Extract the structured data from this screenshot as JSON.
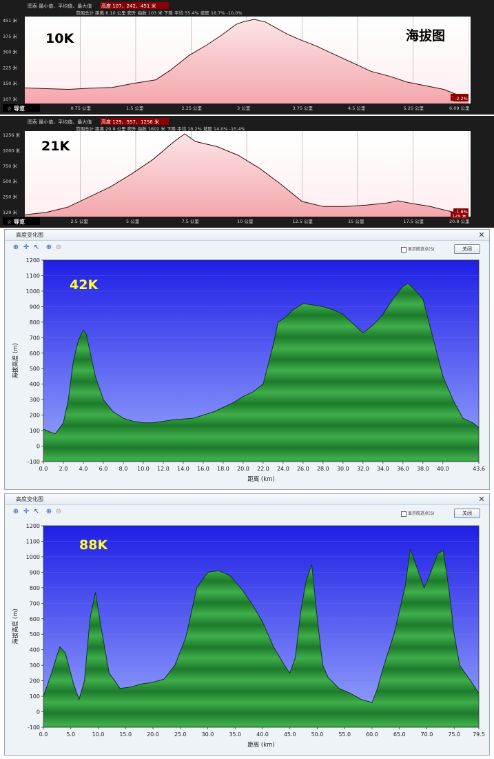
{
  "panel1": {
    "header_line1": "图表  最小值、平均值、最大值",
    "header_highlight": "高度  107、242、451  米",
    "header_line2": "范围总计  距离  6.10  公里  爬升  指数  103  米  下降  平均  55.4%  坡度  16.7%  -10.0%",
    "label": "10K",
    "corner_title": "海拔图",
    "y_ticks": [
      "451 米",
      "375 米",
      "300 米",
      "225 米",
      "150 米",
      "107 米"
    ],
    "x_ticks": [
      "0.75 公里",
      "1.5 公里",
      "2.25 公里",
      "3 公里",
      "3.75 公里",
      "4.5 公里",
      "5.25 公里",
      "6.09 公里"
    ],
    "right_value": "127 米",
    "right_pct": "-2.2%",
    "nav_label": "导览"
  },
  "panel2": {
    "header_line1": "图表  最小值、平均值、最大值",
    "header_highlight": "高度  129、557、1256  米",
    "header_line2": "范围总计  距离  20.8  公里  爬升  指数  1602  米  下降  平均  18.2%  坡度  14.0%  -15.4%",
    "label": "21K",
    "y_ticks": [
      "1256 米",
      "1000 米",
      "750 米",
      "500 米",
      "250 米",
      "129 米"
    ],
    "x_ticks": [
      "2.5 公里",
      "5 公里",
      "7.5 公里",
      "10 公里",
      "12.5 公里",
      "15 公里",
      "17.5 公里",
      "20.8 公里"
    ],
    "right_value": "129 米",
    "right_pct": "-1.8%",
    "nav_label": "导览"
  },
  "window3": {
    "title": "高度变化图",
    "checkbox_label": "显示航迹点(S)",
    "close_label": "关闭",
    "xlabel": "距离 (km)",
    "ylabel": "海拔高度 (m)",
    "label": "42K"
  },
  "window4": {
    "title": "高度变化图",
    "checkbox_label": "显示航迹点(S)",
    "close_label": "关闭",
    "xlabel": "距离 (km)",
    "ylabel": "海拔高度 (m)",
    "label": "88K"
  },
  "colors": {
    "dark_bg": "#1c1c1c",
    "pink_fill": "#f3a7ad",
    "sky_top": "#1f1fe6",
    "sky_bottom": "#9aa8ff",
    "mountain_green": "#2c9a3c",
    "label_yellow": "#ffff33"
  },
  "chart_data": [
    {
      "type": "area",
      "title": "",
      "xlim": [
        0,
        6.09
      ],
      "ylim": [
        107,
        451
      ],
      "x": [
        0,
        0.3,
        0.6,
        0.9,
        1.2,
        1.5,
        1.8,
        2.0,
        2.25,
        2.5,
        2.7,
        2.9,
        3.0,
        3.15,
        3.3,
        3.45,
        3.6,
        3.75,
        4.0,
        4.25,
        4.5,
        4.75,
        5.0,
        5.25,
        5.5,
        5.75,
        6.0,
        6.09
      ],
      "y": [
        166,
        163,
        160,
        165,
        168,
        185,
        200,
        240,
        300,
        345,
        385,
        430,
        441,
        451,
        440,
        415,
        390,
        370,
        340,
        305,
        270,
        235,
        215,
        190,
        175,
        160,
        130,
        127
      ]
    },
    {
      "type": "area",
      "title": "",
      "xlim": [
        0,
        20.8
      ],
      "ylim": [
        129,
        1256
      ],
      "x": [
        0,
        1,
        2,
        3,
        4,
        5,
        6,
        7,
        7.5,
        8,
        9,
        10,
        11,
        12,
        13,
        14,
        15,
        16,
        17,
        17.5,
        18,
        19,
        20,
        20.8
      ],
      "y": [
        135,
        170,
        240,
        380,
        520,
        700,
        900,
        1150,
        1256,
        1150,
        1080,
        960,
        780,
        560,
        320,
        250,
        250,
        270,
        300,
        330,
        300,
        250,
        180,
        129
      ]
    },
    {
      "type": "area",
      "xlabel": "距离 (km)",
      "ylabel": "海拔高度 (m)",
      "xlim": [
        0,
        43.6
      ],
      "ylim": [
        -100,
        1200
      ],
      "x_ticks": [
        0.0,
        2.0,
        4.0,
        6.0,
        8.0,
        10.0,
        12.0,
        14.0,
        16.0,
        18.0,
        20.0,
        22.0,
        24.0,
        26.0,
        28.0,
        30.0,
        32.0,
        34.0,
        36.0,
        38.0,
        40.0,
        43.6
      ],
      "x_tick_labels": [
        "0.0",
        "2.0",
        "4.0",
        "6.0",
        "8.0",
        "10.0",
        "12.0",
        "14.0",
        "16.0",
        "18.0",
        "20.0",
        "22.0",
        "24.0",
        "26.0",
        "28.0",
        "30.0",
        "32.0",
        "34.0",
        "36.0",
        "38.0",
        "40.0",
        "43.6"
      ],
      "y_ticks": [
        -100,
        0,
        100,
        200,
        300,
        400,
        500,
        600,
        700,
        800,
        900,
        1000,
        1100,
        1200
      ],
      "x": [
        0,
        0.7,
        1.2,
        2.0,
        2.5,
        3.0,
        3.5,
        4.0,
        4.3,
        4.7,
        5.2,
        6.0,
        7.0,
        8.0,
        9.0,
        10.0,
        11.0,
        12.0,
        13.0,
        14.0,
        15.0,
        16.0,
        17.0,
        18.0,
        19.0,
        20.0,
        21.0,
        22.0,
        23.0,
        23.5,
        24.0,
        25.0,
        26.0,
        27.0,
        28.0,
        29.0,
        30.0,
        31.0,
        32.0,
        33.0,
        34.0,
        35.0,
        36.0,
        36.5,
        37.0,
        38.0,
        39.0,
        40.0,
        41.0,
        42.0,
        43.0,
        43.6
      ],
      "y": [
        110,
        90,
        80,
        150,
        300,
        550,
        680,
        750,
        720,
        600,
        450,
        300,
        220,
        180,
        160,
        150,
        150,
        160,
        170,
        175,
        180,
        200,
        220,
        250,
        280,
        320,
        350,
        400,
        650,
        800,
        820,
        880,
        920,
        910,
        900,
        880,
        850,
        790,
        730,
        780,
        850,
        950,
        1030,
        1050,
        1020,
        950,
        700,
        450,
        300,
        180,
        150,
        120
      ]
    },
    {
      "type": "area",
      "xlabel": "距离 (km)",
      "ylabel": "海拔高度 (m)",
      "xlim": [
        0,
        79.5
      ],
      "ylim": [
        -100,
        1200
      ],
      "x_ticks": [
        0.0,
        5.0,
        10.0,
        15.0,
        20.0,
        25.0,
        30.0,
        35.0,
        40.0,
        45.0,
        50.0,
        55.0,
        60.0,
        65.0,
        70.0,
        75.0,
        79.5
      ],
      "x_tick_labels": [
        "0.0",
        "5.0",
        "10.0",
        "15.0",
        "20.0",
        "25.0",
        "30.0",
        "35.0",
        "40.0",
        "45.0",
        "50.0",
        "55.0",
        "60.0",
        "65.0",
        "70.0",
        "75.0",
        "79.5"
      ],
      "y_ticks": [
        -100,
        0,
        100,
        200,
        300,
        400,
        500,
        600,
        700,
        800,
        900,
        1000,
        1100,
        1200
      ],
      "x": [
        0,
        1.5,
        3,
        4,
        5.5,
        6.5,
        7.5,
        8.5,
        9.5,
        10.5,
        12,
        14,
        16,
        18,
        20,
        22,
        24,
        26,
        28,
        30,
        32,
        34,
        36,
        38,
        40,
        42,
        44,
        45,
        46,
        47,
        48,
        49,
        50,
        51,
        52,
        54,
        56,
        58,
        60,
        61,
        62,
        64,
        66,
        67,
        68,
        69.5,
        70.5,
        72,
        73,
        74,
        75,
        76,
        77,
        78,
        79.5
      ],
      "y": [
        100,
        250,
        420,
        380,
        180,
        80,
        200,
        600,
        770,
        550,
        250,
        150,
        160,
        180,
        190,
        210,
        300,
        480,
        800,
        900,
        910,
        880,
        800,
        700,
        580,
        420,
        300,
        250,
        350,
        650,
        850,
        950,
        600,
        300,
        220,
        150,
        120,
        80,
        60,
        150,
        280,
        500,
        800,
        1050,
        950,
        800,
        880,
        1020,
        1040,
        800,
        500,
        300,
        250,
        200,
        120
      ]
    }
  ]
}
